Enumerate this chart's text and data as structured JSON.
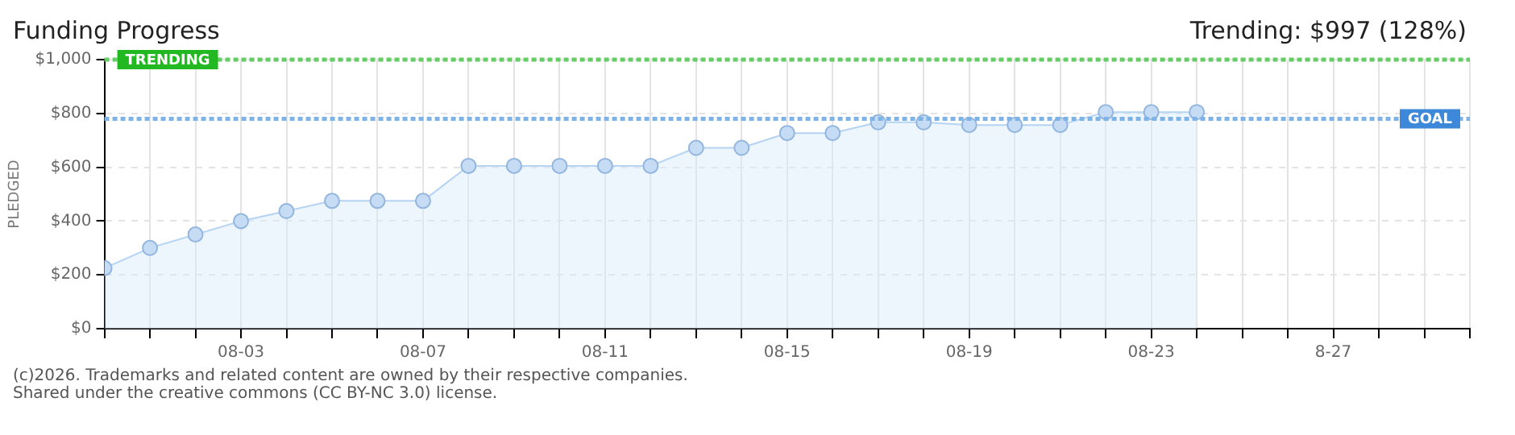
{
  "chart_data": {
    "type": "area",
    "title": "Funding Progress",
    "subtitle": "Trending: $997 (128%)",
    "ylabel": "PLEDGED",
    "x": [
      "--07-31",
      "--08-01",
      "--08-02",
      "--08-03",
      "--08-04",
      "--08-05",
      "--08-06",
      "--08-07",
      "--08-08",
      "--08-09",
      "--08-10",
      "--08-11",
      "--08-12",
      "--08-13",
      "--08-14",
      "--08-15",
      "--08-16",
      "--08-17",
      "--08-18",
      "--08-19",
      "--08-20",
      "--08-21",
      "--08-22",
      "--08-23",
      "--08-24"
    ],
    "series": [
      {
        "color": "#b5d3f2",
        "values": [
          225,
          300,
          350,
          400,
          437,
          475,
          475,
          475,
          605,
          605,
          605,
          605,
          605,
          672,
          672,
          727,
          727,
          767,
          767,
          757,
          757,
          757,
          805,
          805,
          805
        ]
      }
    ],
    "xlim": [
      "--07-31",
      "--08-30"
    ],
    "xticks": [
      {
        "value": "--07-31",
        "label": null
      },
      {
        "value": "--08-01",
        "label": null
      },
      {
        "value": "--08-02",
        "label": null
      },
      {
        "value": "--08-03",
        "label": "08-03"
      },
      {
        "value": "--08-04",
        "label": null
      },
      {
        "value": "--08-05",
        "label": null
      },
      {
        "value": "--08-06",
        "label": null
      },
      {
        "value": "--08-07",
        "label": "08-07"
      },
      {
        "value": "--08-08",
        "label": null
      },
      {
        "value": "--08-09",
        "label": null
      },
      {
        "value": "--08-10",
        "label": null
      },
      {
        "value": "--08-11",
        "label": "08-11"
      },
      {
        "value": "--08-12",
        "label": null
      },
      {
        "value": "--08-13",
        "label": null
      },
      {
        "value": "--08-14",
        "label": null
      },
      {
        "value": "--08-15",
        "label": "08-15"
      },
      {
        "value": "--08-16",
        "label": null
      },
      {
        "value": "--08-17",
        "label": null
      },
      {
        "value": "--08-18",
        "label": null
      },
      {
        "value": "--08-19",
        "label": "08-19"
      },
      {
        "value": "--08-20",
        "label": null
      },
      {
        "value": "--08-21",
        "label": null
      },
      {
        "value": "--08-22",
        "label": null
      },
      {
        "value": "--08-23",
        "label": "08-23"
      },
      {
        "value": "--08-24",
        "label": null
      },
      {
        "value": "--08-25",
        "label": null
      },
      {
        "value": "--08-26",
        "label": null
      },
      {
        "value": "--08-27",
        "label": "8-27"
      },
      {
        "value": "--08-28",
        "label": null
      },
      {
        "value": "--08-29",
        "label": null
      },
      {
        "value": "--08-30",
        "label": null
      }
    ],
    "ylim": [
      0,
      1000
    ],
    "yticks": [
      {
        "value": 0,
        "label": "$0"
      },
      {
        "value": 200,
        "label": "$200"
      },
      {
        "value": 400,
        "label": "$400"
      },
      {
        "value": 600,
        "label": "$600"
      },
      {
        "value": 800,
        "label": "$800"
      },
      {
        "value": 1000,
        "label": "$1,000"
      }
    ],
    "ref_lines": [
      {
        "axis": "y",
        "value": 1000,
        "label": "TRENDING",
        "color": "#66cc66",
        "line_style": "dotted"
      },
      {
        "axis": "y",
        "value": 780,
        "label": "GOAL",
        "color": "#7fb3e6",
        "line_style": "dotted"
      }
    ],
    "grid": true,
    "legend": false,
    "marker": "circle",
    "line_style": "solid",
    "annotations": [
      "(c)2026. Trademarks and related content are owned by their respective companies.",
      "Shared under the creative commons (CC BY-NC 3.0) license."
    ]
  }
}
